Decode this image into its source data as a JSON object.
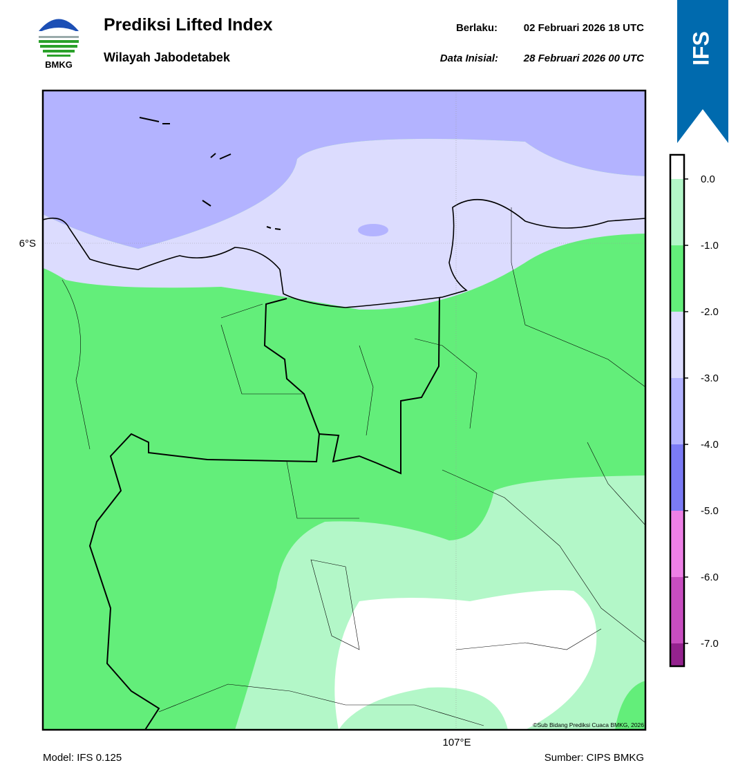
{
  "header": {
    "logo_text": "BMKG",
    "title": "Prediksi Lifted Index",
    "subtitle": "Wilayah Jabodetabek",
    "valid_label": "Berlaku:",
    "valid_value": "02 Februari 2026 18 UTC",
    "init_label": "Data Inisial:",
    "init_value": "28 Februari 2026 00 UTC",
    "badge": "IFS"
  },
  "map": {
    "lat_label": "6°S",
    "lon_label": "107°E",
    "credit": "©Sub Bidang Prediksi Cuaca BMKG, 2026"
  },
  "colorbar": {
    "ticks": [
      "0.0",
      "-1.0",
      "-2.0",
      "-3.0",
      "-4.0",
      "-5.0",
      "-6.0",
      "-7.0"
    ]
  },
  "footer": {
    "model": "Model: IFS 0.125",
    "source": "Sumber: CIPS BMKG"
  }
}
